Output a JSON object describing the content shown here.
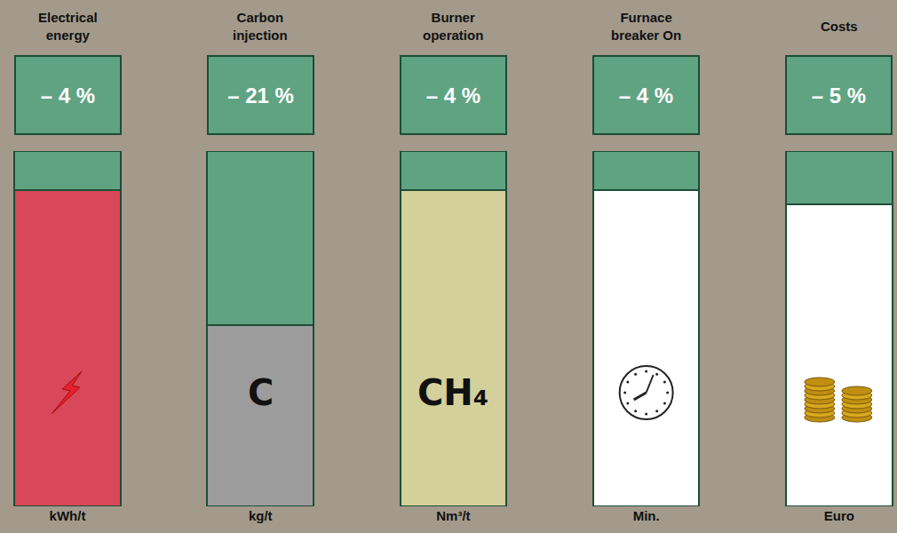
{
  "chart_data": {
    "type": "bar",
    "stacked": true,
    "categories": [
      "Electrical energy",
      "Carbon injection",
      "Burner operation",
      "Furnace breaker On",
      "Costs"
    ],
    "units": [
      "kWh/t",
      "kg/t",
      "Nm³/t",
      "Min.",
      "Euro"
    ],
    "changes": [
      "– 4 %",
      "– 21 %",
      "– 4 %",
      "– 4 %",
      "– 5 %"
    ],
    "bar_texts": [
      null,
      "C",
      "CH₄",
      null,
      null
    ],
    "series": [
      {
        "colors": [
          "#d9475a",
          "#9c9c9c",
          "#d3d09b",
          "#ffffff",
          "#ffffff"
        ],
        "values": [
          89,
          51,
          89,
          89,
          85
        ]
      },
      {
        "color": "#5fa382",
        "values": [
          11,
          49,
          11,
          11,
          15
        ]
      }
    ],
    "ylim": [
      0,
      100
    ],
    "tick_labels": "x",
    "grid": false
  }
}
